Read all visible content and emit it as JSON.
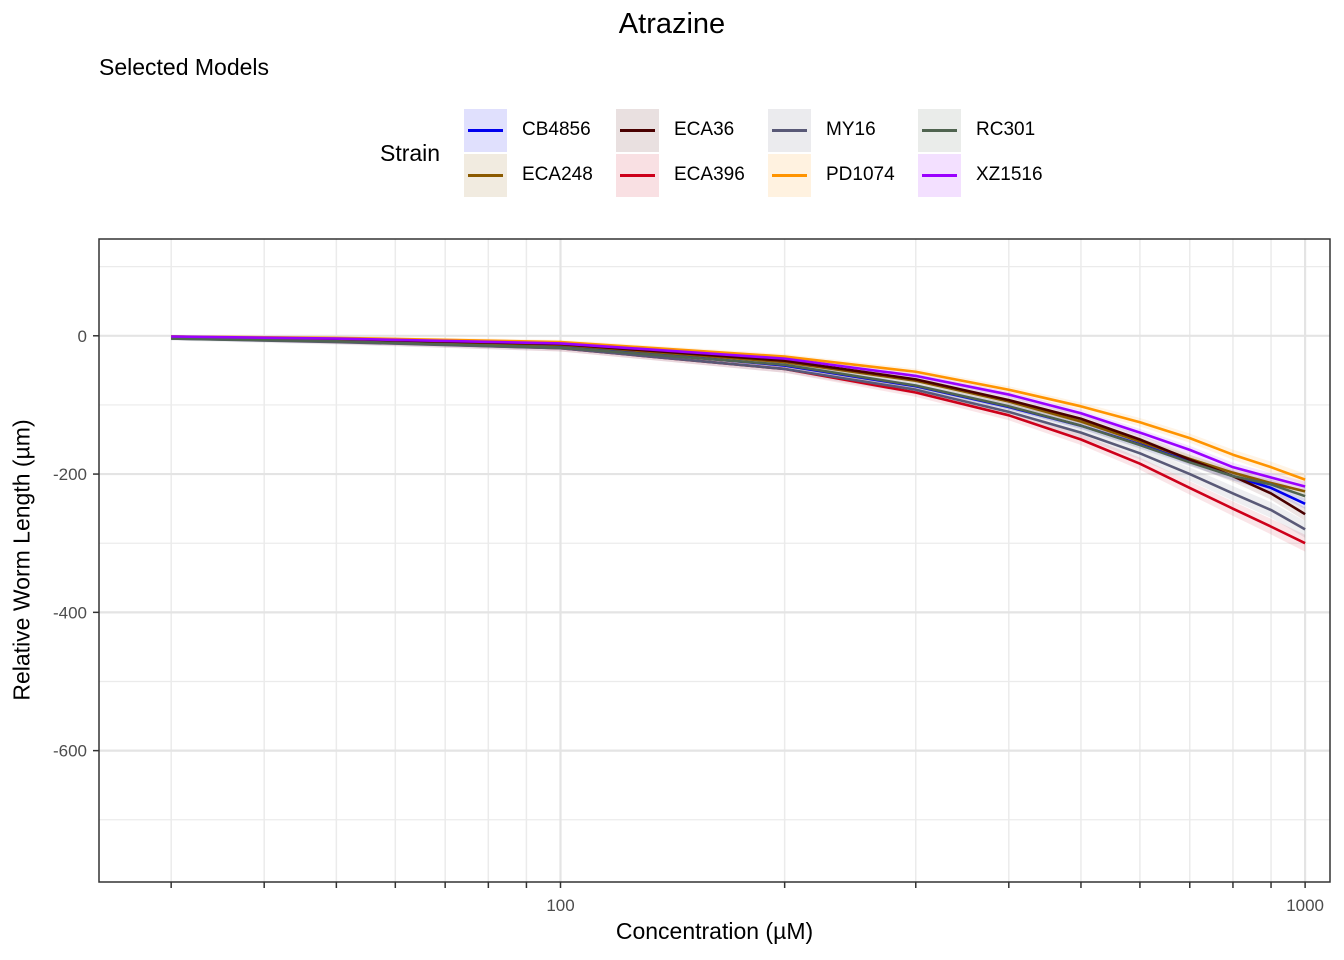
{
  "chart_data": {
    "type": "line",
    "title": "Atrazine",
    "subtitle": "Selected Models",
    "xlabel": "Concentration (µM)",
    "ylabel": "Relative Worm Length (µm)",
    "x_scale": "log10",
    "xlim": [
      24,
      1080
    ],
    "ylim": [
      -790,
      140
    ],
    "x_ticks": [
      100,
      1000
    ],
    "x_tick_labels": [
      "100",
      "1000"
    ],
    "y_ticks": [
      0,
      -200,
      -400,
      -600
    ],
    "y_tick_labels": [
      "0",
      "-200",
      "-400",
      "-600"
    ],
    "grid": true,
    "legend_title": "Strain",
    "legend_position": "top",
    "x": [
      30,
      50,
      100,
      200,
      300,
      400,
      500,
      600,
      700,
      800,
      900,
      1000
    ],
    "series": [
      {
        "name": "CB4856",
        "color": "#0000ee",
        "values": [
          -2,
          -6,
          -14,
          -43,
          -73,
          -103,
          -130,
          -157,
          -182,
          -203,
          -220,
          -243
        ],
        "band": 6
      },
      {
        "name": "ECA248",
        "color": "#8b5a00",
        "values": [
          -3,
          -6,
          -13,
          -38,
          -65,
          -95,
          -124,
          -153,
          -178,
          -198,
          -213,
          -225
        ],
        "band": 6
      },
      {
        "name": "ECA36",
        "color": "#4a0000",
        "values": [
          -1,
          -5,
          -12,
          -36,
          -63,
          -93,
          -120,
          -150,
          -179,
          -203,
          -228,
          -258
        ],
        "band": 8
      },
      {
        "name": "ECA396",
        "color": "#cd001a",
        "values": [
          -2,
          -8,
          -18,
          -48,
          -82,
          -115,
          -150,
          -185,
          -220,
          -250,
          -276,
          -300
        ],
        "band": 10
      },
      {
        "name": "MY16",
        "color": "#595977",
        "values": [
          -4,
          -9,
          -18,
          -48,
          -78,
          -110,
          -140,
          -170,
          -200,
          -228,
          -252,
          -280
        ],
        "band": 10
      },
      {
        "name": "PD1074",
        "color": "#ff9400",
        "values": [
          -1,
          -3,
          -9,
          -30,
          -52,
          -78,
          -102,
          -125,
          -148,
          -172,
          -190,
          -208
        ],
        "band": 7
      },
      {
        "name": "RC301",
        "color": "#506450",
        "values": [
          -4,
          -8,
          -17,
          -42,
          -72,
          -102,
          -130,
          -158,
          -183,
          -203,
          -215,
          -232
        ],
        "band": 6
      },
      {
        "name": "XZ1516",
        "color": "#9a00ff",
        "values": [
          -1,
          -4,
          -11,
          -33,
          -58,
          -85,
          -112,
          -140,
          -165,
          -190,
          -205,
          -218
        ],
        "band": 6
      }
    ]
  }
}
